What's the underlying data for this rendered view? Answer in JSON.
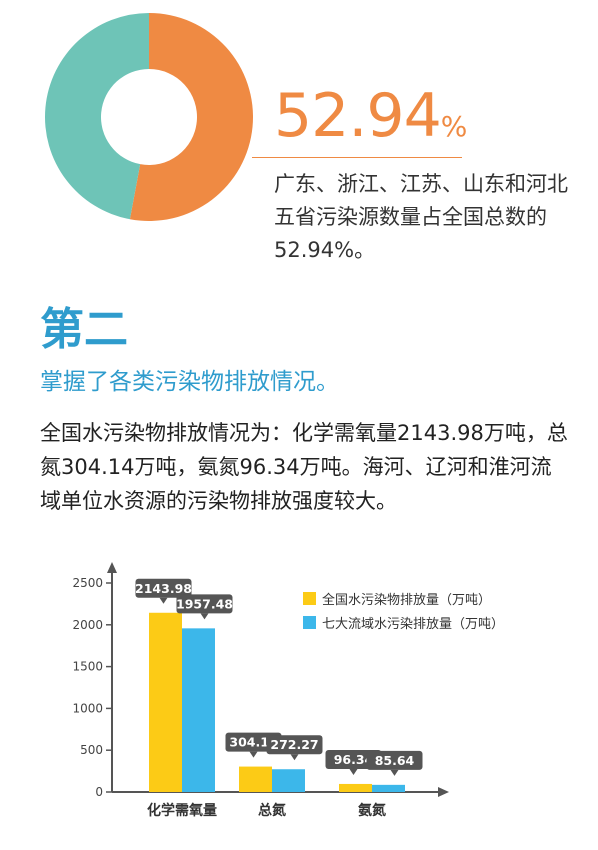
{
  "summary": {
    "percent": "52.94",
    "percent_sign": "%",
    "description": "广东、浙江、江苏、山东和河北五省污染源数量占全国总数的52.94%。",
    "share": 0.5294,
    "colors": {
      "share": "#ef8a43",
      "rest": "#6ec4b7"
    }
  },
  "section": {
    "title": "第二",
    "subheading": "掌握了各类污染物排放情况。",
    "body": "全国水污染物排放情况为：化学需氧量2143.98万吨，总氮304.14万吨，氨氮96.34万吨。海河、辽河和淮河流域单位水资源的污染物排放强度较大。"
  },
  "chart_data": [
    {
      "type": "pie",
      "slices": [
        {
          "value": 52.94,
          "color": "#ef8a43"
        },
        {
          "value": 47.06,
          "color": "#6ec4b7"
        }
      ]
    },
    {
      "type": "bar",
      "categories": [
        "化学需氧量",
        "总氮",
        "氨氮"
      ],
      "series": [
        {
          "name": "全国水污染物排放量（万吨）",
          "values": [
            2143.98,
            304.14,
            96.34
          ],
          "labels": [
            "2143.98",
            "304.14",
            "96.34"
          ],
          "color": "#fccb16"
        },
        {
          "name": "七大流域水污染排放量（万吨）",
          "values": [
            1957.48,
            272.27,
            85.64
          ],
          "labels": [
            "1957.48",
            "272.27",
            "85.64"
          ],
          "color": "#3cb7ea"
        }
      ],
      "ylim": [
        0,
        2500
      ],
      "yticks": [
        "0",
        "500",
        "1000",
        "1500",
        "2000",
        "2500"
      ],
      "legend": "top-right",
      "grid": false
    }
  ]
}
